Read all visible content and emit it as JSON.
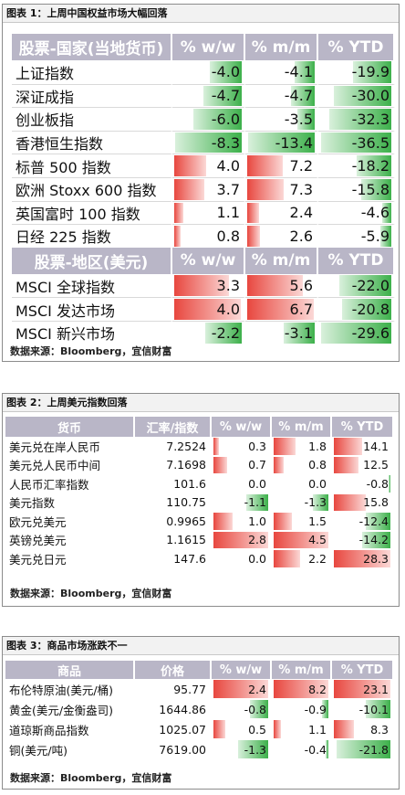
{
  "colors": {
    "header_bg": "#b9b6c7",
    "positive": "#e8473f",
    "negative": "#3cb04a"
  },
  "panel1": {
    "title": "图表 1：上周中国权益市场大幅回落",
    "source": "数据来源：Bloomberg，宜信财富",
    "header_a": [
      "股票-国家(当地货币)",
      "% w/w",
      "% m/m",
      "% YTD"
    ],
    "rows_a": [
      {
        "name": "上证指数",
        "ww": "-4.0",
        "mm": "-4.1",
        "ytd": "-19.9",
        "ww_v": -4.0,
        "mm_v": -4.1,
        "ytd_v": -19.9
      },
      {
        "name": "深证成指",
        "ww": "-4.7",
        "mm": "-4.7",
        "ytd": "-30.0",
        "ww_v": -4.7,
        "mm_v": -4.7,
        "ytd_v": -30.0
      },
      {
        "name": "创业板指",
        "ww": "-6.0",
        "mm": "-3.5",
        "ytd": "-32.3",
        "ww_v": -6.0,
        "mm_v": -3.5,
        "ytd_v": -32.3
      },
      {
        "name": "香港恒生指数",
        "ww": "-8.3",
        "mm": "-13.4",
        "ytd": "-36.5",
        "ww_v": -8.3,
        "mm_v": -13.4,
        "ytd_v": -36.5
      },
      {
        "name": "标普 500 指数",
        "ww": "4.0",
        "mm": "7.2",
        "ytd": "-18.2",
        "ww_v": 4.0,
        "mm_v": 7.2,
        "ytd_v": -18.2
      },
      {
        "name": "欧洲 Stoxx 600 指数",
        "ww": "3.7",
        "mm": "7.3",
        "ytd": "-15.8",
        "ww_v": 3.7,
        "mm_v": 7.3,
        "ytd_v": -15.8
      },
      {
        "name": "英国富时 100 指数",
        "ww": "1.1",
        "mm": "2.4",
        "ytd": "-4.6",
        "ww_v": 1.1,
        "mm_v": 2.4,
        "ytd_v": -4.6
      },
      {
        "name": "日经 225 指数",
        "ww": "0.8",
        "mm": "2.6",
        "ytd": "-5.9",
        "ww_v": 0.8,
        "mm_v": 2.6,
        "ytd_v": -5.9
      }
    ],
    "header_b": [
      "股票-地区(美元)",
      "% w/w",
      "% m/m",
      "% YTD"
    ],
    "rows_b": [
      {
        "name": "MSCI 全球指数",
        "ww": "3.3",
        "mm": "5.6",
        "ytd": "-22.0",
        "ww_v": 3.3,
        "mm_v": 5.6,
        "ytd_v": -22.0
      },
      {
        "name": "MSCI 发达市场",
        "ww": "4.0",
        "mm": "6.7",
        "ytd": "-20.8",
        "ww_v": 4.0,
        "mm_v": 6.7,
        "ytd_v": -20.8
      },
      {
        "name": "MSCI 新兴市场",
        "ww": "-2.2",
        "mm": "-3.1",
        "ytd": "-29.6",
        "ww_v": -2.2,
        "mm_v": -3.1,
        "ytd_v": -29.6
      }
    ]
  },
  "panel2": {
    "title": "图表 2：上周美元指数回落",
    "source": "数据来源：Bloomberg，宜信财富",
    "header": [
      "货币",
      "汇率/指数",
      "% w/w",
      "% m/m",
      "% YTD"
    ],
    "rows": [
      {
        "name": "美元兑在岸人民币",
        "rate": "7.2524",
        "ww": "0.3",
        "mm": "1.8",
        "ytd": "14.1",
        "ww_v": 0.3,
        "mm_v": 1.8,
        "ytd_v": 14.1
      },
      {
        "name": "美元兑人民币中间",
        "rate": "7.1698",
        "ww": "0.7",
        "mm": "0.8",
        "ytd": "12.5",
        "ww_v": 0.7,
        "mm_v": 0.8,
        "ytd_v": 12.5
      },
      {
        "name": "人民币汇率指数",
        "rate": "101.6",
        "ww": "0.0",
        "mm": "0.0",
        "ytd": "-0.8",
        "ww_v": 0.0,
        "mm_v": 0.0,
        "ytd_v": -0.8
      },
      {
        "name": "美元指数",
        "rate": "110.75",
        "ww": "-1.1",
        "mm": "-1.3",
        "ytd": "15.8",
        "ww_v": -1.1,
        "mm_v": -1.3,
        "ytd_v": 15.8
      },
      {
        "name": "欧元兑美元",
        "rate": "0.9965",
        "ww": "1.0",
        "mm": "1.5",
        "ytd": "-12.4",
        "ww_v": 1.0,
        "mm_v": 1.5,
        "ytd_v": -12.4
      },
      {
        "name": "英镑兑美元",
        "rate": "1.1615",
        "ww": "2.8",
        "mm": "4.5",
        "ytd": "-14.2",
        "ww_v": 2.8,
        "mm_v": 4.5,
        "ytd_v": -14.2
      },
      {
        "name": "美元兑日元",
        "rate": "147.6",
        "ww": "0.0",
        "mm": "2.2",
        "ytd": "28.3",
        "ww_v": 0.0,
        "mm_v": 2.2,
        "ytd_v": 28.3
      }
    ]
  },
  "panel3": {
    "title": "图表 3：商品市场涨跌不一",
    "source": "数据来源：Bloomberg，宜信财富",
    "header": [
      "商品",
      "价格",
      "% w/w",
      "% m/m",
      "% YTD"
    ],
    "rows": [
      {
        "name": "布伦特原油(美元/桶)",
        "price": "95.77",
        "ww": "2.4",
        "mm": "8.2",
        "ytd": "23.1",
        "ww_v": 2.4,
        "mm_v": 8.2,
        "ytd_v": 23.1
      },
      {
        "name": "黄金(美元/金衡盎司)",
        "price": "1644.86",
        "ww": "-0.8",
        "mm": "-0.9",
        "ytd": "-10.1",
        "ww_v": -0.8,
        "mm_v": -0.9,
        "ytd_v": -10.1
      },
      {
        "name": "道琼斯商品指数",
        "price": "1025.07",
        "ww": "0.5",
        "mm": "1.1",
        "ytd": "8.3",
        "ww_v": 0.5,
        "mm_v": 1.1,
        "ytd_v": 8.3
      },
      {
        "name": "铜(美元/吨)",
        "price": "7619.00",
        "ww": "-1.3",
        "mm": "-0.4",
        "ytd": "-21.8",
        "ww_v": -1.3,
        "mm_v": -0.4,
        "ytd_v": -21.8
      }
    ]
  }
}
